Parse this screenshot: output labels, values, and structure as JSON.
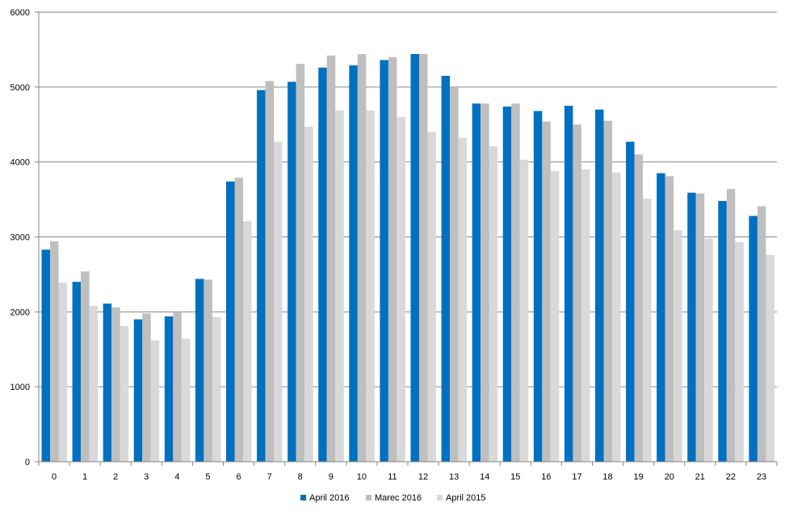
{
  "chart_data": {
    "type": "bar",
    "title": "",
    "xlabel": "",
    "ylabel": "",
    "ylim": [
      0,
      6000
    ],
    "y_ticks": [
      0,
      1000,
      2000,
      3000,
      4000,
      5000,
      6000
    ],
    "grid": "horizontal",
    "legend_position": "bottom",
    "categories": [
      "0",
      "1",
      "2",
      "3",
      "4",
      "5",
      "6",
      "7",
      "8",
      "9",
      "10",
      "11",
      "12",
      "13",
      "14",
      "15",
      "16",
      "17",
      "18",
      "19",
      "20",
      "21",
      "22",
      "23"
    ],
    "series": [
      {
        "name": "April 2016",
        "color": "#0070c0",
        "values": [
          2830,
          2400,
          2110,
          1900,
          1940,
          2440,
          3740,
          4960,
          5070,
          5260,
          5290,
          5360,
          5440,
          5150,
          4780,
          4740,
          4680,
          4750,
          4700,
          4270,
          3850,
          3590,
          3480,
          3280
        ]
      },
      {
        "name": "Marec 2016",
        "color": "#bfbfbf",
        "values": [
          2940,
          2540,
          2060,
          1980,
          1990,
          2430,
          3790,
          5080,
          5310,
          5420,
          5440,
          5400,
          5440,
          4990,
          4780,
          4780,
          4540,
          4500,
          4550,
          4100,
          3810,
          3580,
          3640,
          3410
        ]
      },
      {
        "name": "April 2015",
        "color": "#d9d9d9",
        "values": [
          2390,
          2080,
          1810,
          1620,
          1640,
          1930,
          3210,
          4270,
          4470,
          4690,
          4690,
          4600,
          4400,
          4320,
          4210,
          4030,
          3880,
          3900,
          3860,
          3510,
          3090,
          2980,
          2930,
          2760
        ]
      }
    ]
  }
}
